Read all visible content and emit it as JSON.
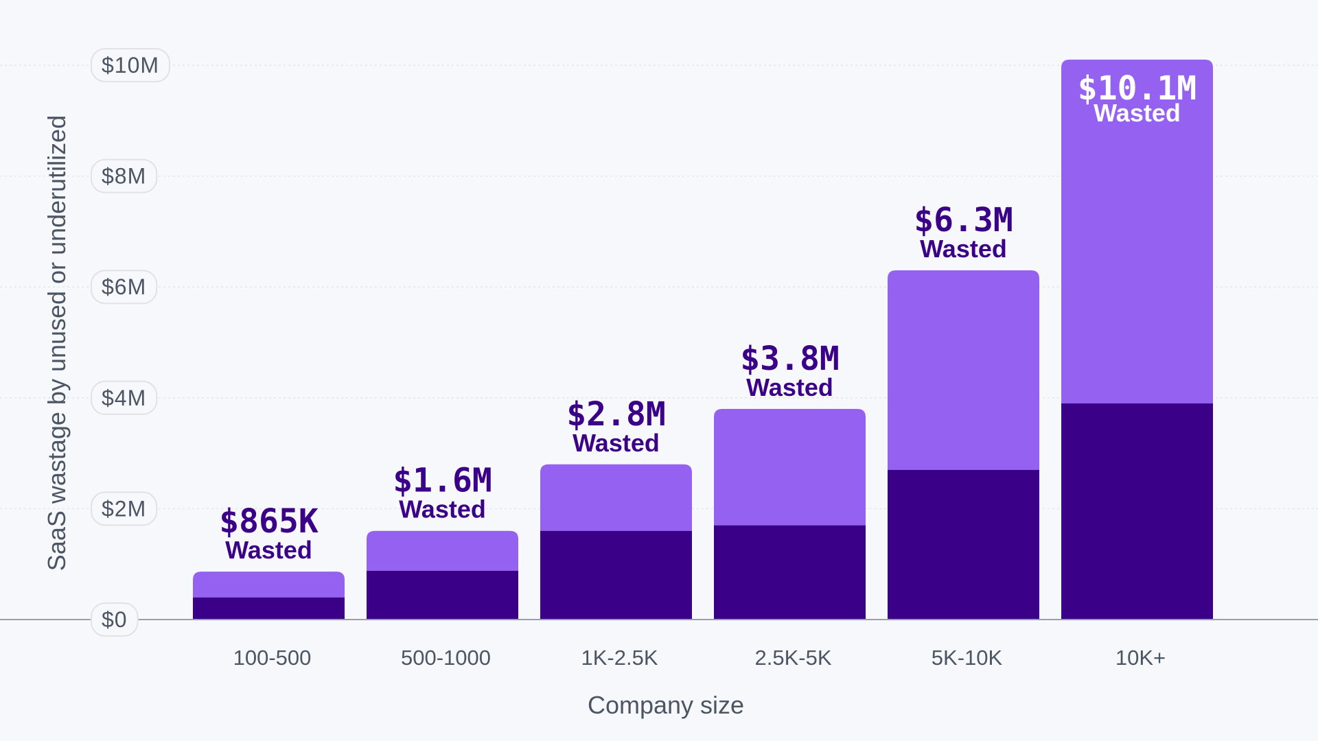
{
  "colors": {
    "background": "#f7f8fb",
    "bar_upper": "#9461f0",
    "bar_lower": "#3a0087",
    "label_dark": "#3a0087",
    "label_light": "#ffffff",
    "text": "#4b5563"
  },
  "chart_data": {
    "type": "bar",
    "stacked": true,
    "title": "",
    "xlabel": "Company size",
    "ylabel": "SaaS wastage by unused or underutilized",
    "ylim": [
      0,
      10
    ],
    "y_unit": "millions USD",
    "y_ticks": [
      {
        "value": 0,
        "label": "$0"
      },
      {
        "value": 2,
        "label": "$2M"
      },
      {
        "value": 4,
        "label": "$4M"
      },
      {
        "value": 6,
        "label": "$6M"
      },
      {
        "value": 8,
        "label": "$8M"
      },
      {
        "value": 10,
        "label": "$10M"
      }
    ],
    "categories": [
      "100-500",
      "500-1000",
      "1K-2.5K",
      "2.5K-5K",
      "5K-10K",
      "10K+"
    ],
    "series": [
      {
        "name": "lower",
        "values": [
          0.4,
          0.88,
          1.6,
          1.7,
          2.7,
          3.9
        ]
      },
      {
        "name": "upper",
        "values": [
          0.465,
          0.72,
          1.2,
          2.1,
          3.6,
          6.2
        ]
      }
    ],
    "totals": [
      0.865,
      1.6,
      2.8,
      3.8,
      6.3,
      10.1
    ],
    "bar_labels": [
      {
        "value": "$865K",
        "sub": "Wasted",
        "placement": "above"
      },
      {
        "value": "$1.6M",
        "sub": "Wasted",
        "placement": "above"
      },
      {
        "value": "$2.8M",
        "sub": "Wasted",
        "placement": "above"
      },
      {
        "value": "$3.8M",
        "sub": "Wasted",
        "placement": "above"
      },
      {
        "value": "$6.3M",
        "sub": "Wasted",
        "placement": "above"
      },
      {
        "value": "$10.1M",
        "sub": "Wasted",
        "placement": "inside"
      }
    ]
  }
}
